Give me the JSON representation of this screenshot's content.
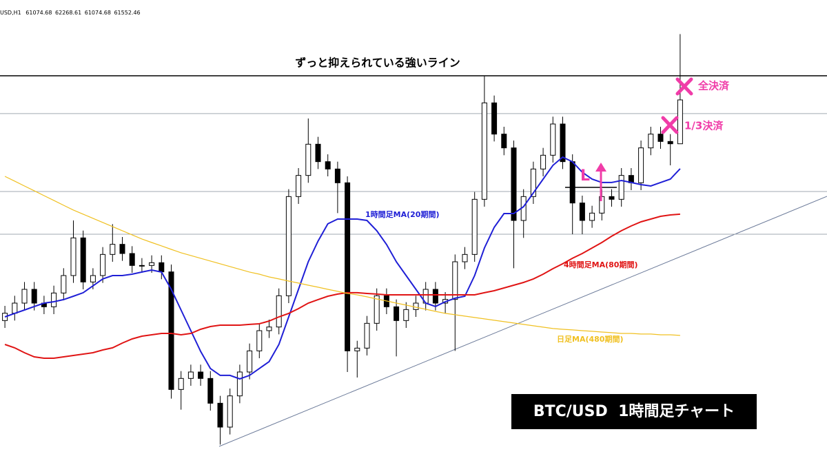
{
  "chart_data": {
    "type": "candlestick",
    "symbol": "USD,H1",
    "annotation": "ずっと抑えられている強いライン",
    "exit_full": "全決済",
    "exit_third": "1/3決済",
    "entry": "L",
    "caption": "BTC/USD  1時間足チャート",
    "ylim": [
      57577.5,
      62640
    ],
    "categories": [
      null,
      null,
      null,
      null,
      null,
      null,
      null,
      null,
      null,
      null,
      null,
      null,
      null,
      null,
      null,
      null,
      null,
      null,
      null,
      null,
      null,
      null,
      null,
      null,
      null,
      null,
      null,
      null,
      null,
      null,
      null,
      null,
      null,
      null,
      null,
      null,
      null,
      null,
      null,
      null,
      null,
      null,
      null,
      null,
      null,
      null,
      null,
      null,
      null,
      null,
      null,
      null,
      null,
      null,
      null,
      null,
      null,
      null,
      null,
      null,
      null,
      null,
      null,
      null,
      null,
      null,
      null,
      null,
      null,
      null
    ],
    "open": [
      59150,
      59230,
      59340,
      59490,
      59340,
      59300,
      59450,
      59640,
      60050,
      59570,
      59640,
      59870,
      59980,
      59880,
      59750,
      59750,
      59780,
      59680,
      58400,
      58520,
      58590,
      58520,
      58250,
      57990,
      58330,
      58590,
      58820,
      59040,
      59080,
      59420,
      60500,
      60730,
      61070,
      60880,
      60800,
      60650,
      58820,
      58850,
      59120,
      59420,
      59300,
      59150,
      59270,
      59340,
      59490,
      59340,
      59380,
      59790,
      59870,
      60470,
      61520,
      61180,
      61030,
      60240,
      60500,
      60800,
      60950,
      61290,
      60880,
      60430,
      60240,
      60320,
      60500,
      60470,
      60730,
      60650,
      61030,
      61180,
      61100,
      61074.68
    ],
    "high": [
      59310,
      59420,
      59570,
      59570,
      59420,
      59530,
      59720,
      60240,
      60130,
      59720,
      59950,
      60200,
      60060,
      59960,
      59830,
      59860,
      59860,
      59760,
      58600,
      58670,
      58670,
      58600,
      58330,
      58410,
      58670,
      58900,
      59120,
      59160,
      59500,
      60580,
      60810,
      61350,
      61150,
      60960,
      60880,
      60720,
      58930,
      59200,
      59500,
      59500,
      59380,
      59350,
      59420,
      59570,
      59570,
      59460,
      59870,
      59950,
      60550,
      61810,
      61600,
      61260,
      61110,
      60580,
      60880,
      61030,
      61370,
      61370,
      60960,
      60510,
      60400,
      60580,
      60580,
      60810,
      60810,
      61110,
      61260,
      61260,
      61180,
      62268.61
    ],
    "low": [
      59070,
      59150,
      59260,
      59260,
      59220,
      59220,
      59370,
      59560,
      59490,
      59490,
      59560,
      59790,
      59800,
      59670,
      59670,
      59670,
      59600,
      58300,
      58180,
      58440,
      58440,
      58170,
      57800,
      57910,
      58250,
      58510,
      58740,
      58960,
      59000,
      59340,
      60420,
      60650,
      60800,
      60720,
      60320,
      58590,
      58530,
      58770,
      59040,
      59220,
      58760,
      59070,
      59190,
      59260,
      59260,
      59230,
      58820,
      59710,
      59790,
      60390,
      61100,
      60950,
      59720,
      60050,
      60420,
      60720,
      60870,
      60800,
      60090,
      60090,
      60160,
      60240,
      60390,
      60390,
      60570,
      60570,
      60950,
      61020,
      60840,
      61074.68
    ],
    "close": [
      59230,
      59340,
      59490,
      59340,
      59300,
      59450,
      59640,
      60050,
      59570,
      59640,
      59870,
      59980,
      59880,
      59750,
      59750,
      59780,
      59680,
      58400,
      58520,
      58590,
      58520,
      58250,
      57990,
      58330,
      58590,
      58820,
      59040,
      59080,
      59420,
      60500,
      60730,
      61070,
      60880,
      60800,
      60650,
      58820,
      58850,
      59120,
      59420,
      59300,
      59150,
      59270,
      59340,
      59490,
      59340,
      59380,
      59790,
      59870,
      60470,
      61520,
      61180,
      61030,
      60240,
      60500,
      60800,
      60950,
      61290,
      60880,
      60430,
      60240,
      60320,
      60500,
      60470,
      60730,
      60650,
      61030,
      61180,
      61100,
      61074.68,
      61552.46
    ],
    "up_color": "#ffffff",
    "down_color": "#000000",
    "series": [
      {
        "name": "1時間足MA(20期間)",
        "color": "#1f1fd6",
        "values": [
          59190,
          59228,
          59265,
          59303,
          59340,
          59355,
          59378,
          59415,
          59453,
          59528,
          59603,
          59640,
          59640,
          59655,
          59678,
          59700,
          59678,
          59490,
          59265,
          59040,
          58815,
          58628,
          58553,
          58553,
          58515,
          58553,
          58628,
          58703,
          58890,
          59190,
          59490,
          59790,
          60015,
          60203,
          60255,
          60255,
          60255,
          60240,
          60128,
          59978,
          59790,
          59640,
          59490,
          59340,
          59303,
          59355,
          59393,
          59415,
          59640,
          59940,
          60165,
          60315,
          60315,
          60390,
          60540,
          60690,
          60840,
          60930,
          60878,
          60765,
          60690,
          60653,
          60653,
          60675,
          60653,
          60630,
          60615,
          60653,
          60690,
          60803
        ]
      },
      {
        "name": "4時間足MA(80期間)",
        "color": "#e01414",
        "values": [
          58890,
          58853,
          58800,
          58755,
          58740,
          58740,
          58755,
          58770,
          58785,
          58800,
          58830,
          58853,
          58905,
          58950,
          58980,
          58995,
          59010,
          59010,
          58995,
          59010,
          59055,
          59085,
          59100,
          59100,
          59100,
          59108,
          59115,
          59145,
          59190,
          59228,
          59280,
          59340,
          59378,
          59415,
          59438,
          59453,
          59453,
          59445,
          59438,
          59430,
          59430,
          59430,
          59430,
          59430,
          59430,
          59430,
          59430,
          59430,
          59430,
          59453,
          59475,
          59505,
          59535,
          59565,
          59603,
          59655,
          59715,
          59768,
          59828,
          59880,
          59940,
          60000,
          60068,
          60128,
          60180,
          60225,
          60255,
          60285,
          60300,
          60308
        ]
      },
      {
        "name": "日足MA(480期間)",
        "color": "#f0c020",
        "values": [
          60720,
          60668,
          60615,
          60563,
          60510,
          60458,
          60405,
          60353,
          60308,
          60263,
          60218,
          60173,
          60128,
          60083,
          60038,
          60000,
          59963,
          59925,
          59888,
          59858,
          59828,
          59798,
          59768,
          59738,
          59708,
          59678,
          59655,
          59625,
          59603,
          59580,
          59558,
          59535,
          59513,
          59490,
          59468,
          59445,
          59430,
          59408,
          59385,
          59363,
          59340,
          59318,
          59295,
          59273,
          59250,
          59228,
          59213,
          59198,
          59183,
          59168,
          59153,
          59138,
          59123,
          59108,
          59093,
          59078,
          59063,
          59055,
          59048,
          59040,
          59033,
          59025,
          59018,
          59010,
          59010,
          59003,
          59003,
          58995,
          58995,
          58988
        ]
      }
    ],
    "levels": [
      {
        "value": 61815,
        "color": "#000000"
      },
      {
        "value": 61403,
        "color": "#a0aab2"
      },
      {
        "value": 60555,
        "color": "#a0aab2"
      },
      {
        "value": 60090,
        "color": "#a0aab2"
      }
    ]
  }
}
